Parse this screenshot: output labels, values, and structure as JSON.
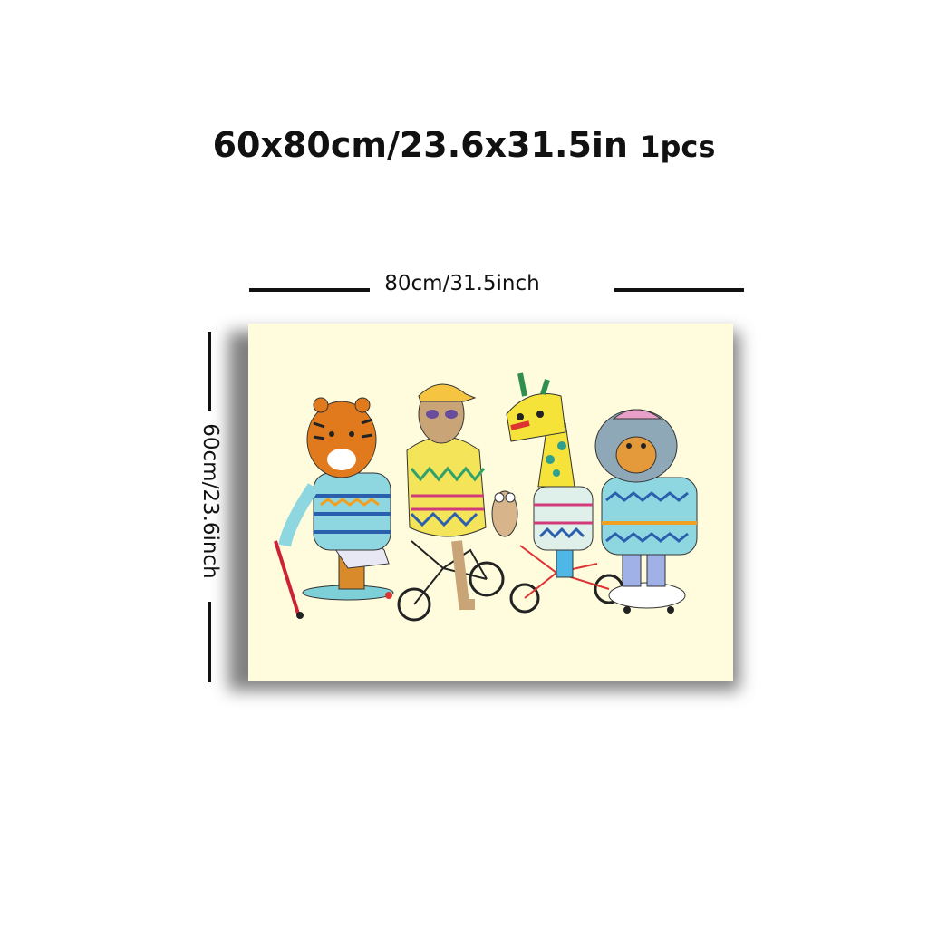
{
  "title": {
    "size_text": "60x80cm/23.6x31.5in",
    "quantity_text": "1pcs"
  },
  "dimensions": {
    "width_label": "80cm/31.5inch",
    "height_label": "60cm/23.6inch"
  },
  "artwork": {
    "subject_icons": [
      "tiger-icon",
      "sloth-icon",
      "owl-icon",
      "giraffe-icon",
      "bear-icon"
    ],
    "background_color": "#fefcdc"
  }
}
